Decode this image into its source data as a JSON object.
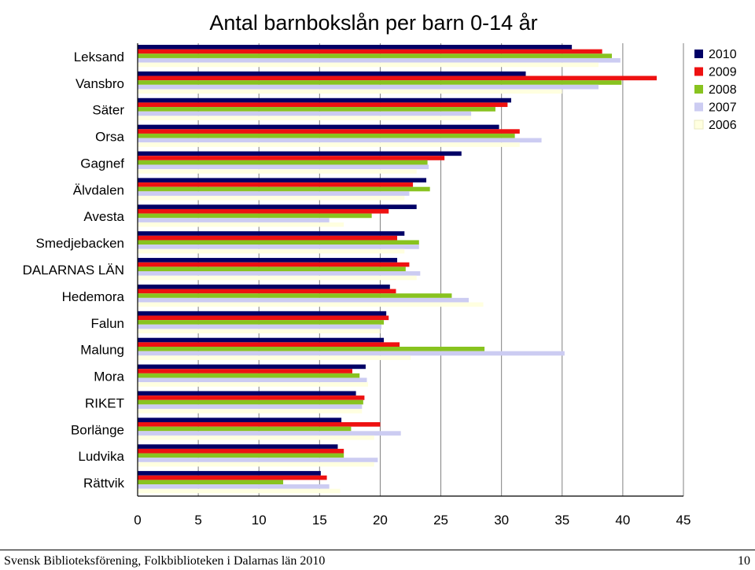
{
  "chart_data": {
    "type": "bar",
    "orientation": "horizontal",
    "title": "Antal barnbokslån per barn 0-14 år",
    "xlabel": "",
    "ylabel": "",
    "xlim": [
      0,
      45
    ],
    "xticks": [
      "0",
      "5",
      "10",
      "15",
      "20",
      "25",
      "30",
      "35",
      "40",
      "45"
    ],
    "grid": "vertical",
    "legend_position": "right",
    "categories": [
      "Leksand",
      "Vansbro",
      "Säter",
      "Orsa",
      "Gagnef",
      "Älvdalen",
      "Avesta",
      "Smedjebacken",
      "DALARNAS LÄN",
      "Hedemora",
      "Falun",
      "Malung",
      "Mora",
      "RIKET",
      "Borlänge",
      "Ludvika",
      "Rättvik"
    ],
    "series": [
      {
        "name": "2010",
        "color": "#000066",
        "values": [
          35.8,
          32.0,
          30.8,
          29.8,
          26.7,
          23.8,
          23.0,
          22.0,
          21.4,
          20.8,
          20.5,
          20.3,
          18.8,
          18.0,
          16.8,
          16.5,
          15.1
        ]
      },
      {
        "name": "2009",
        "color": "#ee1111",
        "values": [
          38.3,
          42.8,
          30.5,
          31.5,
          25.3,
          22.7,
          20.7,
          21.4,
          22.4,
          21.3,
          20.7,
          21.6,
          17.7,
          18.7,
          20.0,
          17.0,
          15.6
        ]
      },
      {
        "name": "2008",
        "color": "#88c31f",
        "values": [
          39.1,
          39.9,
          29.5,
          31.1,
          23.9,
          24.1,
          19.3,
          23.2,
          22.1,
          25.9,
          20.3,
          28.6,
          18.3,
          18.6,
          17.6,
          17.0,
          12.0
        ]
      },
      {
        "name": "2007",
        "color": "#ccccf2",
        "values": [
          39.8,
          38.0,
          27.5,
          33.3,
          24.0,
          22.4,
          15.8,
          23.2,
          23.3,
          27.3,
          20.1,
          35.2,
          18.9,
          18.5,
          21.7,
          19.8,
          15.8
        ]
      },
      {
        "name": "2006",
        "color": "#ffffe0",
        "values": [
          38.0,
          35.0,
          27.5,
          31.5,
          23.0,
          22.0,
          17.0,
          22.0,
          23.0,
          28.5,
          20.0,
          22.5,
          19.0,
          18.5,
          19.5,
          19.5,
          16.7
        ]
      }
    ]
  },
  "footer": {
    "text": "Svensk Biblioteksförening, Folkbiblioteken i Dalarnas län 2010",
    "page_number": "10"
  }
}
